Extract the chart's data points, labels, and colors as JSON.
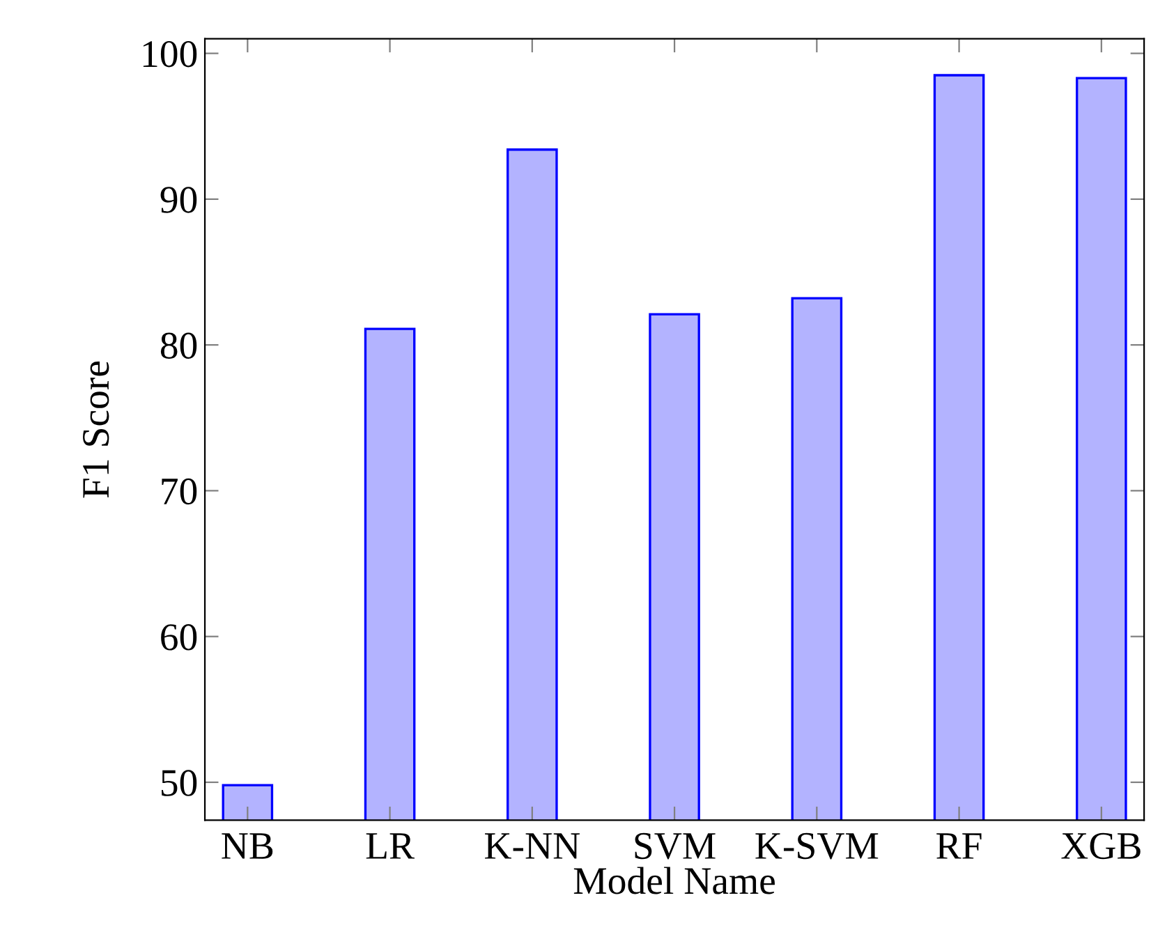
{
  "chart_data": {
    "type": "bar",
    "xlabel": "Model Name",
    "ylabel": "F1 Score",
    "categories": [
      "NB",
      "LR",
      "K-NN",
      "SVM",
      "K-SVM",
      "RF",
      "XGB"
    ],
    "values": [
      49.8,
      81.1,
      93.4,
      82.1,
      83.2,
      98.5,
      98.3
    ],
    "color": "#b3b3ff",
    "ylim": [
      47.4,
      101
    ],
    "yticks": [
      50,
      60,
      70,
      80,
      90,
      100
    ],
    "grid": false
  }
}
